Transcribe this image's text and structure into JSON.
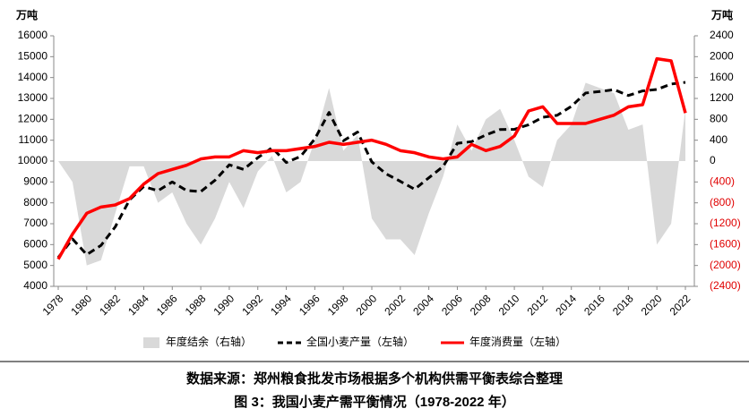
{
  "chart_data": {
    "type": "line",
    "title": "图 3：我国小麦产需平衡情况（1978-2022 年）",
    "source": "数据来源：郑州粮食批发市场根据多个机构供需平衡表综合整理",
    "y_label": "万吨",
    "y2_label": "万吨",
    "x": [
      1978,
      1979,
      1980,
      1981,
      1982,
      1983,
      1984,
      1985,
      1986,
      1987,
      1988,
      1989,
      1990,
      1991,
      1992,
      1993,
      1994,
      1995,
      1996,
      1997,
      1998,
      1999,
      2000,
      2001,
      2002,
      2003,
      2004,
      2005,
      2006,
      2007,
      2008,
      2009,
      2010,
      2011,
      2012,
      2013,
      2014,
      2015,
      2016,
      2017,
      2018,
      2019,
      2020,
      2021,
      2022
    ],
    "xlim": [
      1978,
      2022
    ],
    "xticks": [
      1978,
      1980,
      1982,
      1984,
      1986,
      1988,
      1990,
      1992,
      1994,
      1996,
      1998,
      2000,
      2002,
      2004,
      2006,
      2008,
      2010,
      2012,
      2014,
      2016,
      2018,
      2020,
      2022
    ],
    "ylim": [
      4000,
      16000
    ],
    "yticks": [
      4000,
      5000,
      6000,
      7000,
      8000,
      9000,
      10000,
      11000,
      12000,
      13000,
      14000,
      15000,
      16000
    ],
    "y2lim": [
      -2400,
      2400
    ],
    "y2ticks": [
      {
        "value": -2400,
        "label": "(2400)"
      },
      {
        "value": -2000,
        "label": "(2000)"
      },
      {
        "value": -1600,
        "label": "(1600)"
      },
      {
        "value": -1200,
        "label": "(1200)"
      },
      {
        "value": -800,
        "label": "(800)"
      },
      {
        "value": -400,
        "label": "(400)"
      },
      0,
      400,
      800,
      1200,
      1600,
      2000,
      2400
    ],
    "y2_negative_color": "#e00000",
    "grid": false,
    "legend": "bottom",
    "series": [
      {
        "name": "年度结余（右轴）",
        "color": "#d9d9d9",
        "style": "area",
        "axis": "y2",
        "values": [
          0,
          -400,
          -2000,
          -1900,
          -1000,
          -100,
          -100,
          -800,
          -600,
          -1200,
          -1600,
          -1100,
          -400,
          -900,
          -200,
          100,
          -600,
          -400,
          400,
          1400,
          200,
          500,
          -1100,
          -1500,
          -1500,
          -1800,
          -1000,
          -300,
          700,
          200,
          800,
          1000,
          400,
          -300,
          -500,
          400,
          700,
          1500,
          1400,
          1300,
          600,
          700,
          -1600,
          -1200,
          1000
        ]
      },
      {
        "name": "全国小麦产量（左轴）",
        "color": "#000000",
        "style": "dashed",
        "values": [
          5380,
          6270,
          5520,
          5960,
          6850,
          8140,
          8780,
          8580,
          9000,
          8590,
          8540,
          9080,
          9820,
          9600,
          10160,
          10640,
          9930,
          10220,
          11060,
          12330,
          10970,
          11390,
          9960,
          9390,
          9030,
          8650,
          9200,
          9740,
          10850,
          10930,
          11250,
          11510,
          11520,
          11740,
          12100,
          12190,
          12620,
          13260,
          13330,
          13420,
          13140,
          13360,
          13430,
          13690,
          13770
        ]
      },
      {
        "name": "年度消费量（左轴）",
        "color": "#ff0000",
        "style": "solid",
        "values": [
          5300,
          6500,
          7500,
          7800,
          7900,
          8200,
          8900,
          9400,
          9600,
          9800,
          10100,
          10200,
          10200,
          10500,
          10400,
          10500,
          10500,
          10600,
          10700,
          10900,
          10800,
          10900,
          11000,
          10800,
          10500,
          10400,
          10200,
          10100,
          10200,
          10800,
          10500,
          10700,
          11200,
          12400,
          12600,
          11800,
          11800,
          11800,
          12000,
          12200,
          12600,
          12700,
          14900,
          14800,
          12300
        ]
      }
    ]
  }
}
